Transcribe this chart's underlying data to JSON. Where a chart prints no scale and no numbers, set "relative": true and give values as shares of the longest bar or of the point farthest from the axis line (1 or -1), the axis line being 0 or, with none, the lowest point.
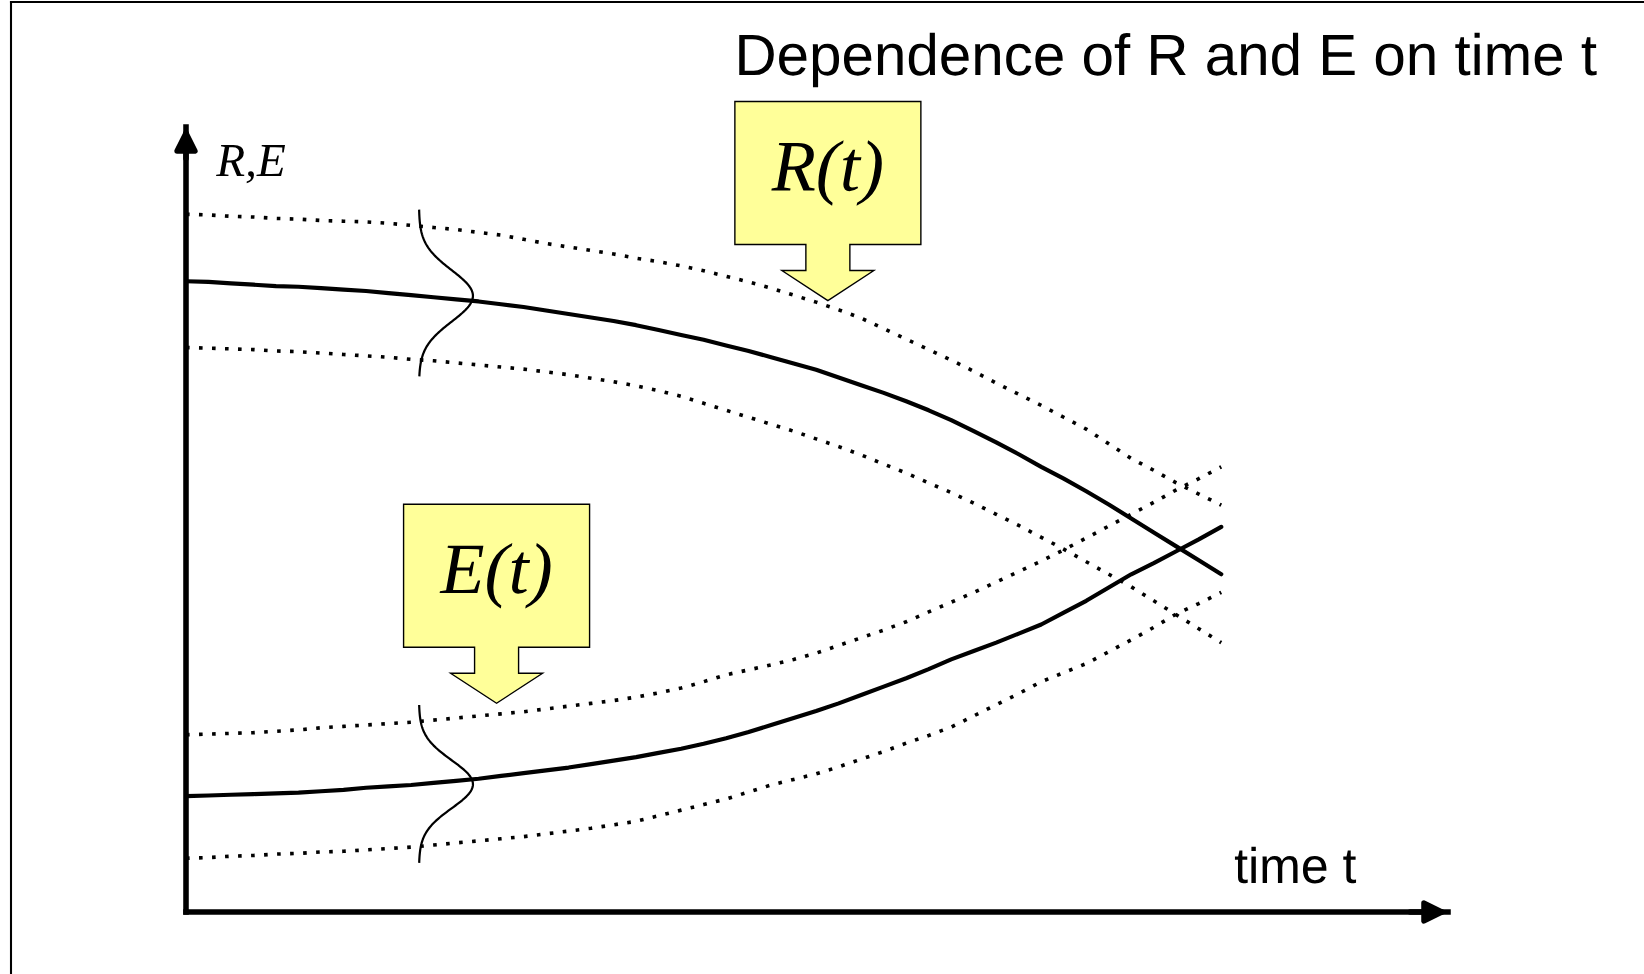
{
  "chart_data": {
    "type": "line",
    "title": "Dependence of R and E on time t",
    "xlabel": "time t",
    "ylabel": "R,E",
    "relative": true,
    "tick_labels": false,
    "categories": [
      null,
      null,
      null,
      null,
      null,
      null,
      null,
      null,
      null,
      null,
      null,
      null,
      null,
      null,
      null,
      null,
      null,
      null,
      null,
      null,
      null,
      null,
      null,
      null,
      null,
      null,
      null,
      null,
      null,
      null,
      null,
      null,
      null,
      null,
      null,
      null,
      null,
      null,
      null,
      null,
      null,
      null,
      null,
      null,
      null,
      null,
      null
    ],
    "series": [
      {
        "name": "R(t)",
        "color": "#000000",
        "line_style": "solid",
        "values": [
          0.904,
          0.903,
          0.901,
          0.899,
          0.897,
          0.896,
          0.894,
          0.892,
          0.89,
          0.887,
          0.884,
          0.881,
          0.878,
          0.875,
          0.871,
          0.867,
          0.862,
          0.857,
          0.852,
          0.847,
          0.841,
          0.834,
          0.827,
          0.82,
          0.812,
          0.804,
          0.795,
          0.786,
          0.777,
          0.766,
          0.755,
          0.744,
          0.732,
          0.719,
          0.705,
          0.689,
          0.673,
          0.656,
          0.638,
          0.621,
          0.603,
          0.584,
          0.564,
          0.544,
          0.524,
          0.504,
          0.484
        ]
      },
      {
        "color": "#000000",
        "line_style": "dotted",
        "values": [
          1.0,
          0.999,
          0.997,
          0.996,
          0.994,
          0.993,
          0.991,
          0.99,
          0.989,
          0.987,
          0.984,
          0.981,
          0.978,
          0.974,
          0.97,
          0.964,
          0.958,
          0.953,
          0.948,
          0.943,
          0.937,
          0.932,
          0.926,
          0.919,
          0.911,
          0.903,
          0.894,
          0.884,
          0.874,
          0.863,
          0.851,
          0.836,
          0.821,
          0.806,
          0.791,
          0.775,
          0.758,
          0.742,
          0.726,
          0.709,
          0.692,
          0.671,
          0.65,
          0.633,
          0.615,
          0.599,
          0.583
        ]
      },
      {
        "color": "#000000",
        "line_style": "dotted",
        "values": [
          0.809,
          0.808,
          0.807,
          0.806,
          0.804,
          0.803,
          0.801,
          0.799,
          0.797,
          0.795,
          0.792,
          0.79,
          0.787,
          0.784,
          0.781,
          0.778,
          0.774,
          0.77,
          0.765,
          0.76,
          0.754,
          0.747,
          0.739,
          0.729,
          0.719,
          0.709,
          0.699,
          0.689,
          0.678,
          0.667,
          0.655,
          0.642,
          0.629,
          0.615,
          0.601,
          0.586,
          0.57,
          0.554,
          0.537,
          0.52,
          0.502,
          0.484,
          0.466,
          0.446,
          0.426,
          0.406,
          0.386
        ]
      },
      {
        "name": "E(t)",
        "color": "#000000",
        "line_style": "solid",
        "values": [
          0.166,
          0.167,
          0.168,
          0.169,
          0.17,
          0.171,
          0.173,
          0.175,
          0.178,
          0.18,
          0.182,
          0.185,
          0.188,
          0.191,
          0.195,
          0.199,
          0.203,
          0.207,
          0.212,
          0.217,
          0.222,
          0.228,
          0.234,
          0.241,
          0.249,
          0.258,
          0.268,
          0.278,
          0.288,
          0.299,
          0.311,
          0.323,
          0.335,
          0.348,
          0.362,
          0.374,
          0.386,
          0.399,
          0.412,
          0.429,
          0.446,
          0.465,
          0.484,
          0.5,
          0.517,
          0.534,
          0.552
        ]
      },
      {
        "color": "#000000",
        "line_style": "dotted",
        "values": [
          0.254,
          0.255,
          0.256,
          0.257,
          0.259,
          0.261,
          0.264,
          0.266,
          0.268,
          0.27,
          0.272,
          0.275,
          0.278,
          0.281,
          0.284,
          0.287,
          0.291,
          0.295,
          0.299,
          0.303,
          0.308,
          0.314,
          0.321,
          0.33,
          0.34,
          0.347,
          0.354,
          0.362,
          0.371,
          0.382,
          0.393,
          0.404,
          0.416,
          0.43,
          0.444,
          0.458,
          0.473,
          0.488,
          0.503,
          0.519,
          0.536,
          0.553,
          0.57,
          0.587,
          0.605,
          0.621,
          0.638
        ]
      },
      {
        "color": "#000000",
        "line_style": "dotted",
        "values": [
          0.077,
          0.078,
          0.08,
          0.081,
          0.083,
          0.084,
          0.086,
          0.087,
          0.089,
          0.091,
          0.093,
          0.096,
          0.099,
          0.102,
          0.105,
          0.108,
          0.112,
          0.116,
          0.12,
          0.125,
          0.13,
          0.138,
          0.146,
          0.154,
          0.162,
          0.172,
          0.182,
          0.19,
          0.198,
          0.208,
          0.219,
          0.23,
          0.242,
          0.253,
          0.265,
          0.281,
          0.297,
          0.313,
          0.33,
          0.343,
          0.356,
          0.373,
          0.39,
          0.408,
          0.427,
          0.442,
          0.458
        ]
      }
    ]
  }
}
